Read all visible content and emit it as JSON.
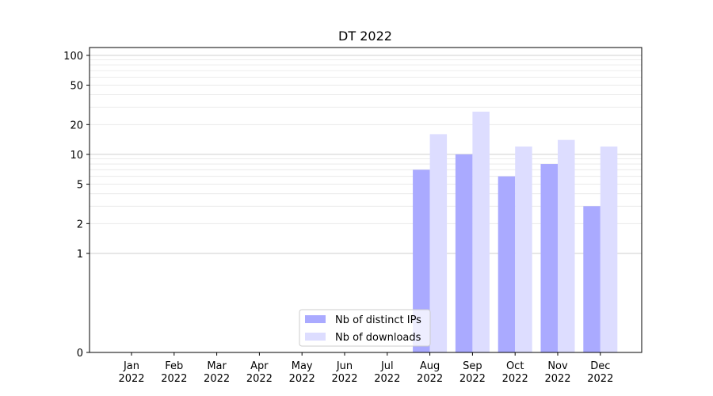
{
  "chart_data": {
    "type": "bar",
    "title": "DT 2022",
    "xlabel": "",
    "ylabel": "",
    "categories": [
      {
        "month": "Jan",
        "year": "2022"
      },
      {
        "month": "Feb",
        "year": "2022"
      },
      {
        "month": "Mar",
        "year": "2022"
      },
      {
        "month": "Apr",
        "year": "2022"
      },
      {
        "month": "May",
        "year": "2022"
      },
      {
        "month": "Jun",
        "year": "2022"
      },
      {
        "month": "Jul",
        "year": "2022"
      },
      {
        "month": "Aug",
        "year": "2022"
      },
      {
        "month": "Sep",
        "year": "2022"
      },
      {
        "month": "Oct",
        "year": "2022"
      },
      {
        "month": "Nov",
        "year": "2022"
      },
      {
        "month": "Dec",
        "year": "2022"
      }
    ],
    "series": [
      {
        "name": "Nb of distinct IPs",
        "color": "#aaaaff",
        "values": [
          0,
          0,
          0,
          0,
          0,
          0,
          0,
          7,
          10,
          6,
          8,
          3
        ]
      },
      {
        "name": "Nb of downloads",
        "color": "#ddddff",
        "values": [
          0,
          0,
          0,
          0,
          0,
          0,
          0,
          16,
          27,
          12,
          14,
          12
        ]
      }
    ],
    "y_scale": "symlog",
    "ylim": [
      0,
      120
    ],
    "y_ticks": [
      {
        "value": 0,
        "label": "0"
      },
      {
        "value": 1,
        "label": "1"
      },
      {
        "value": 2,
        "label": "2"
      },
      {
        "value": 5,
        "label": "5"
      },
      {
        "value": 10,
        "label": "10"
      },
      {
        "value": 20,
        "label": "20"
      },
      {
        "value": 50,
        "label": "50"
      },
      {
        "value": 100,
        "label": "100"
      }
    ],
    "major_grid": [
      1,
      10,
      100
    ],
    "minor_grid": [
      2,
      3,
      4,
      5,
      6,
      7,
      8,
      9,
      20,
      30,
      40,
      50,
      60,
      70,
      80,
      90
    ],
    "grid": true,
    "legend_position": "bottom-center"
  }
}
